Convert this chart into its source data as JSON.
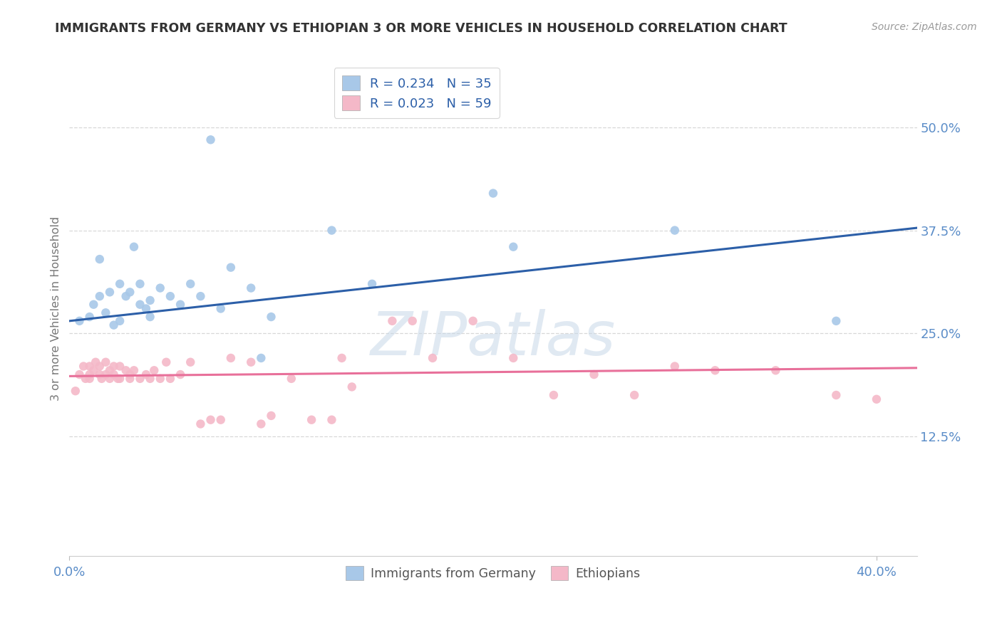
{
  "title": "IMMIGRANTS FROM GERMANY VS ETHIOPIAN 3 OR MORE VEHICLES IN HOUSEHOLD CORRELATION CHART",
  "source_text": "Source: ZipAtlas.com",
  "ylabel": "3 or more Vehicles in Household",
  "xlim": [
    0.0,
    0.42
  ],
  "ylim": [
    -0.02,
    0.58
  ],
  "y_ticks_right": [
    0.125,
    0.25,
    0.375,
    0.5
  ],
  "y_tick_labels_right": [
    "12.5%",
    "25.0%",
    "37.5%",
    "50.0%"
  ],
  "legend1_r": "0.234",
  "legend1_n": "35",
  "legend2_r": "0.023",
  "legend2_n": "59",
  "blue_color": "#a8c8e8",
  "pink_color": "#f4b8c8",
  "blue_line_color": "#2c5fa8",
  "pink_line_color": "#e8709a",
  "watermark_text": "ZIPatlas",
  "blue_line_x0": 0.0,
  "blue_line_y0": 0.265,
  "blue_line_x1": 0.42,
  "blue_line_y1": 0.378,
  "pink_line_x0": 0.0,
  "pink_line_y0": 0.198,
  "pink_line_x1": 0.42,
  "pink_line_y1": 0.208,
  "blue_scatter_x": [
    0.005,
    0.01,
    0.012,
    0.015,
    0.015,
    0.018,
    0.02,
    0.022,
    0.025,
    0.025,
    0.028,
    0.03,
    0.032,
    0.035,
    0.035,
    0.038,
    0.04,
    0.04,
    0.045,
    0.05,
    0.055,
    0.06,
    0.065,
    0.07,
    0.075,
    0.08,
    0.09,
    0.095,
    0.1,
    0.13,
    0.15,
    0.22,
    0.3,
    0.38,
    0.21
  ],
  "blue_scatter_y": [
    0.265,
    0.27,
    0.285,
    0.295,
    0.34,
    0.275,
    0.3,
    0.26,
    0.265,
    0.31,
    0.295,
    0.3,
    0.355,
    0.285,
    0.31,
    0.28,
    0.29,
    0.27,
    0.305,
    0.295,
    0.285,
    0.31,
    0.295,
    0.485,
    0.28,
    0.33,
    0.305,
    0.22,
    0.27,
    0.375,
    0.31,
    0.355,
    0.375,
    0.265,
    0.42
  ],
  "pink_scatter_x": [
    0.003,
    0.005,
    0.007,
    0.008,
    0.01,
    0.01,
    0.01,
    0.012,
    0.013,
    0.015,
    0.015,
    0.016,
    0.018,
    0.018,
    0.02,
    0.02,
    0.022,
    0.022,
    0.024,
    0.025,
    0.025,
    0.028,
    0.03,
    0.03,
    0.032,
    0.035,
    0.038,
    0.04,
    0.042,
    0.045,
    0.048,
    0.05,
    0.055,
    0.06,
    0.065,
    0.07,
    0.075,
    0.08,
    0.09,
    0.095,
    0.1,
    0.11,
    0.12,
    0.13,
    0.135,
    0.14,
    0.16,
    0.17,
    0.18,
    0.2,
    0.22,
    0.24,
    0.26,
    0.28,
    0.3,
    0.32,
    0.35,
    0.38,
    0.4
  ],
  "pink_scatter_y": [
    0.18,
    0.2,
    0.21,
    0.195,
    0.21,
    0.2,
    0.195,
    0.205,
    0.215,
    0.21,
    0.2,
    0.195,
    0.2,
    0.215,
    0.195,
    0.205,
    0.2,
    0.21,
    0.195,
    0.21,
    0.195,
    0.205,
    0.2,
    0.195,
    0.205,
    0.195,
    0.2,
    0.195,
    0.205,
    0.195,
    0.215,
    0.195,
    0.2,
    0.215,
    0.14,
    0.145,
    0.145,
    0.22,
    0.215,
    0.14,
    0.15,
    0.195,
    0.145,
    0.145,
    0.22,
    0.185,
    0.265,
    0.265,
    0.22,
    0.265,
    0.22,
    0.175,
    0.2,
    0.175,
    0.21,
    0.205,
    0.205,
    0.175,
    0.17
  ],
  "background_color": "#ffffff",
  "grid_color": "#d8d8d8",
  "title_color": "#333333",
  "axis_label_color": "#5b8dc8"
}
